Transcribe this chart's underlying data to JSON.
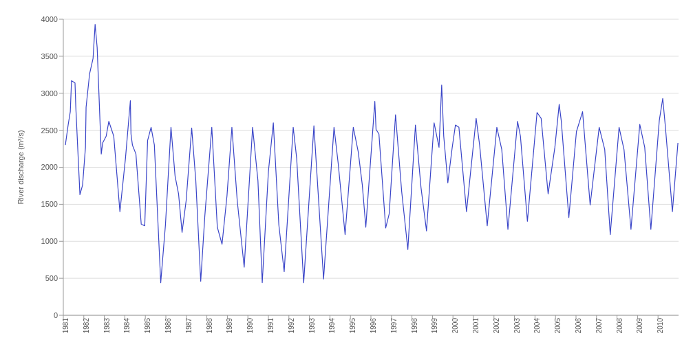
{
  "chart_data": {
    "type": "line",
    "ylabel": "River discharge (m³/s)",
    "x": [
      1981.1,
      1981.24,
      1981.34,
      1981.4,
      1981.57,
      1981.61,
      1981.81,
      1981.94,
      1982.08,
      1982.11,
      1982.28,
      1982.45,
      1982.55,
      1982.65,
      1982.85,
      1982.92,
      1983.09,
      1983.22,
      1983.46,
      1983.76,
      1984.03,
      1984.27,
      1984.3,
      1984.37,
      1984.54,
      1984.8,
      1984.97,
      1985.11,
      1985.28,
      1985.44,
      1985.75,
      1985.98,
      1986.25,
      1986.45,
      1986.62,
      1986.79,
      1986.99,
      1987.26,
      1987.46,
      1987.7,
      1987.9,
      1988.24,
      1988.51,
      1988.74,
      1988.98,
      1989.22,
      1989.48,
      1989.82,
      1990.23,
      1990.49,
      1990.7,
      1991.0,
      1991.24,
      1991.51,
      1991.77,
      1992.21,
      1992.38,
      1992.72,
      1993.22,
      1993.69,
      1994.2,
      1994.4,
      1994.74,
      1995.14,
      1995.38,
      1995.58,
      1995.75,
      1996.19,
      1996.25,
      1996.39,
      1996.72,
      1996.89,
      1997.2,
      1997.5,
      1997.8,
      1998.17,
      1998.44,
      1998.71,
      1999.08,
      1999.32,
      1999.45,
      1999.55,
      1999.75,
      1999.96,
      2000.12,
      2000.29,
      2000.66,
      2001.13,
      2001.3,
      2001.67,
      2002.14,
      2002.38,
      2002.68,
      2003.15,
      2003.29,
      2003.63,
      2004.1,
      2004.3,
      2004.64,
      2004.97,
      2005.18,
      2005.28,
      2005.65,
      2006.02,
      2006.32,
      2006.69,
      2007.13,
      2007.4,
      2007.67,
      2008.1,
      2008.34,
      2008.68,
      2009.11,
      2009.35,
      2009.65,
      2010.06,
      2010.23,
      2010.36,
      2010.7,
      2010.97
    ],
    "series": [
      {
        "color": "#3a45c8",
        "values": [
          2300,
          2580,
          2750,
          3170,
          3140,
          2810,
          1630,
          1760,
          2270,
          2810,
          3260,
          3470,
          3930,
          3620,
          2180,
          2330,
          2420,
          2620,
          2420,
          1400,
          2120,
          2900,
          2450,
          2300,
          2180,
          1230,
          1210,
          2360,
          2540,
          2300,
          440,
          1220,
          2540,
          1880,
          1640,
          1120,
          1550,
          2530,
          1820,
          460,
          1340,
          2540,
          1190,
          960,
          1610,
          2540,
          1550,
          650,
          2540,
          1820,
          440,
          1940,
          2600,
          1220,
          590,
          2540,
          2120,
          440,
          2560,
          490,
          2540,
          2060,
          1090,
          2540,
          2210,
          1760,
          1190,
          2890,
          2510,
          2450,
          1180,
          1370,
          2710,
          1670,
          890,
          2570,
          1730,
          1140,
          2600,
          2270,
          3110,
          2420,
          1790,
          2260,
          2570,
          2540,
          1400,
          2660,
          2300,
          1210,
          2540,
          2240,
          1160,
          2620,
          2420,
          1270,
          2740,
          2660,
          1640,
          2270,
          2850,
          2630,
          1320,
          2480,
          2750,
          1490,
          2540,
          2240,
          1090,
          2540,
          2240,
          1160,
          2580,
          2270,
          1160,
          2630,
          2930,
          2540,
          1400,
          2330
        ]
      }
    ],
    "xlim": [
      1981,
      2011
    ],
    "xticks": [
      1981,
      1982,
      1983,
      1984,
      1985,
      1986,
      1987,
      1988,
      1989,
      1990,
      1991,
      1992,
      1993,
      1994,
      1995,
      1996,
      1997,
      1998,
      1999,
      2000,
      2001,
      2002,
      2003,
      2004,
      2005,
      2006,
      2007,
      2008,
      2009,
      2010
    ],
    "ylim": [
      0,
      4000
    ],
    "yticks": [
      0,
      500,
      1000,
      1500,
      2000,
      2500,
      3000,
      3500,
      4000
    ],
    "grid": "y",
    "legend": false,
    "marker": "none",
    "line_style": "solid"
  }
}
